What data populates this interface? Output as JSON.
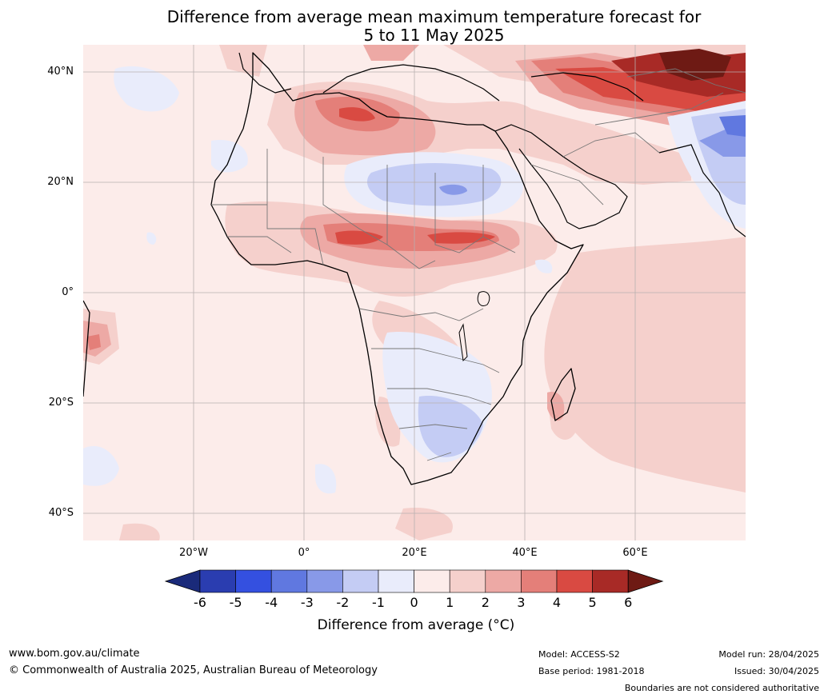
{
  "title": {
    "line1": "Difference from average mean maximum temperature forecast for",
    "line2": "5 to 11 May 2025"
  },
  "axes": {
    "lat_labels": [
      "40°N",
      "20°N",
      "0°",
      "20°S",
      "40°S"
    ],
    "lon_labels": [
      "20°W",
      "0°",
      "20°E",
      "40°E",
      "60°E"
    ]
  },
  "colorbar": {
    "label": "Difference from average (°C)",
    "ticks": [
      "-6",
      "-5",
      "-4",
      "-3",
      "-2",
      "-1",
      "0",
      "1",
      "2",
      "3",
      "4",
      "5",
      "6"
    ],
    "colors": [
      "#1a2a7a",
      "#2a3db0",
      "#3450e0",
      "#6078e0",
      "#8899e8",
      "#c4ccf4",
      "#e9ecfb",
      "#fcecea",
      "#f5d0cc",
      "#eda9a5",
      "#e47f79",
      "#d94a42",
      "#a82a26",
      "#6e1a14"
    ]
  },
  "footer": {
    "website": "www.bom.gov.au/climate",
    "copyright": "© Commonwealth of Australia 2025, Australian Bureau of Meteorology",
    "model": "Model: ACCESS-S2",
    "base_period": "Base period: 1981-2018",
    "model_run": "Model run: 28/04/2025",
    "issued": "Issued: 30/04/2025",
    "disclaimer": "Boundaries are not considered authoritative"
  }
}
